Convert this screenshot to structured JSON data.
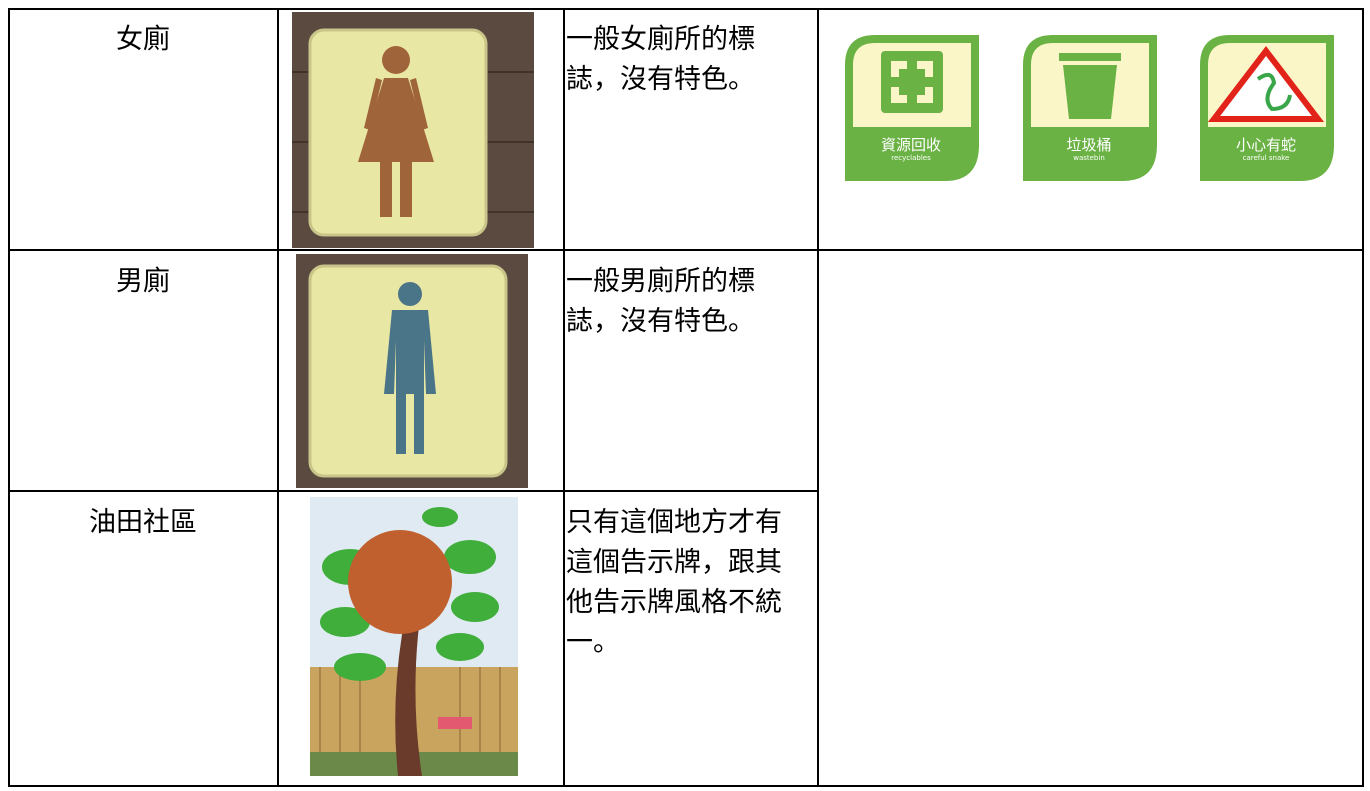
{
  "table": {
    "rows": [
      {
        "name": "女廁",
        "description": "一般女廁所的標誌，沒有特色。"
      },
      {
        "name": "男廁",
        "description": "一般男廁所的標誌，沒有特色。"
      },
      {
        "name": "油田社區",
        "description": "只有這個地方才有這個告示牌，跟其他告示牌風格不統一。"
      }
    ]
  },
  "icons": [
    {
      "label": "資源回收",
      "sublabel": "recyclables"
    },
    {
      "label": "垃圾桶",
      "sublabel": "wastebin"
    },
    {
      "label": "小心有蛇",
      "sublabel": "careful snake"
    }
  ]
}
